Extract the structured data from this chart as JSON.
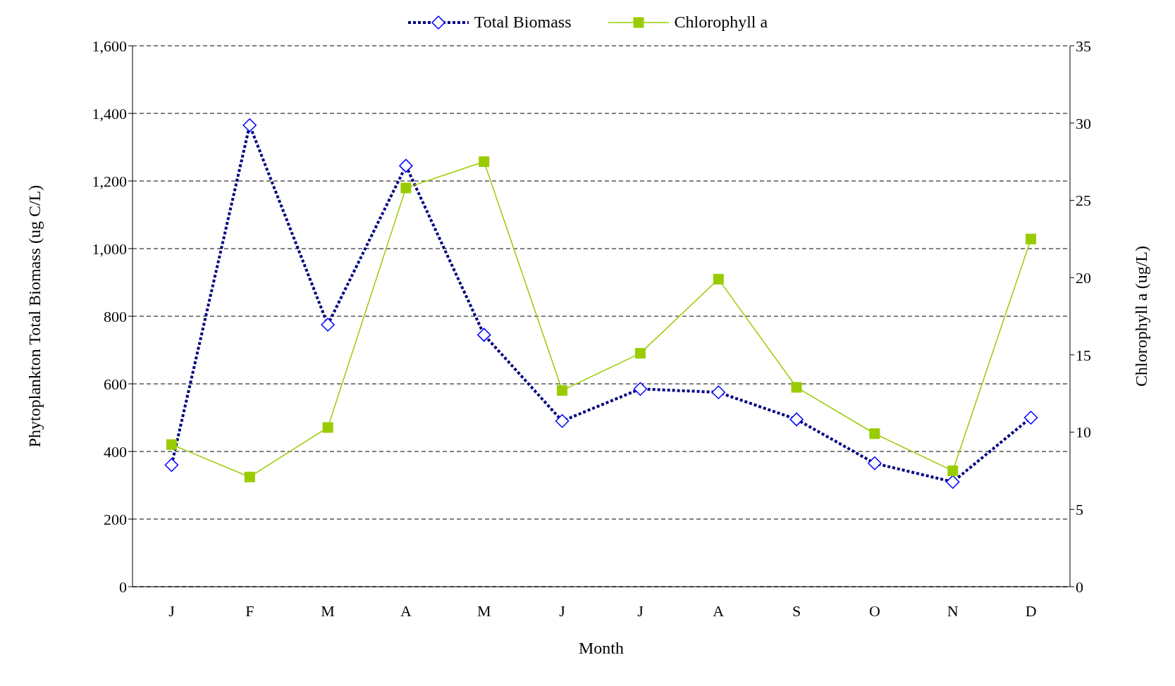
{
  "chart_data": {
    "type": "line",
    "xlabel": "Month",
    "ylabel": "Phytoplankton Total Biomass  (ug C/L)",
    "y2label": "Chlorophyll a (ug/L)",
    "categories": [
      "J",
      "F",
      "M",
      "A",
      "M",
      "J",
      "J",
      "A",
      "S",
      "O",
      "N",
      "D"
    ],
    "series": [
      {
        "name": "Total Biomass",
        "color": "#000080",
        "marker": "diamond",
        "line_style": "dotted",
        "values": [
          360,
          1365,
          775,
          1245,
          745,
          490,
          585,
          575,
          495,
          365,
          310,
          500
        ]
      },
      {
        "name": "Chlorophyll a",
        "color": "#99cc00",
        "marker": "square",
        "line_style": "solid",
        "axis": "y2",
        "values": [
          9.2,
          7.1,
          10.3,
          25.8,
          27.5,
          12.7,
          15.1,
          19.9,
          12.9,
          9.9,
          7.5,
          22.5
        ]
      }
    ],
    "ylim": [
      0,
      1600
    ],
    "yticks": [
      0,
      {
        "value": 200,
        "label": "200"
      },
      {
        "value": 400,
        "label": "400"
      },
      {
        "value": 600,
        "label": "600"
      },
      {
        "value": 800,
        "label": "800"
      },
      {
        "value": 1000,
        "label": "1,000"
      },
      {
        "value": 1200,
        "label": "1,200"
      },
      {
        "value": 1400,
        "label": "1,400"
      },
      {
        "value": 1600,
        "label": "1,600"
      }
    ],
    "y2lim": [
      0,
      35
    ],
    "y2ticks": [
      0,
      5,
      10,
      15,
      20,
      25,
      30,
      35
    ],
    "grid": "y",
    "legend": "top"
  }
}
